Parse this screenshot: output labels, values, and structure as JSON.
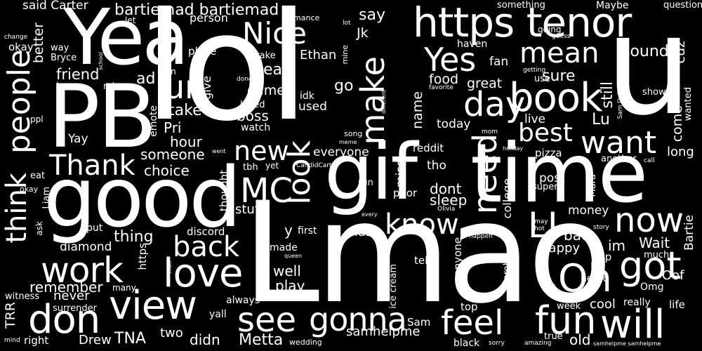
{
  "background_color": "#000000",
  "text_color": "#ffffff",
  "words": {
    "lol": "lol",
    "lmao": "Lmao",
    "time": "time",
    "gif": "gif",
    "good": "good",
    "pb": "PB",
    "yea": "Yea",
    "u": "u",
    "https_tenor": "https tenor",
    "book": "book",
    "view": "view",
    "love": "love",
    "work": "work",
    "don": "don",
    "oh": "Oh",
    "got": "got",
    "will": "will",
    "fun": "fun",
    "feel": "feel",
    "gonna": "gonna",
    "see": "see",
    "now": "now",
    "li": "LI",
    "know": "know",
    "need": "need",
    "look": "look",
    "mc": "MC",
    "want": "want",
    "best": "best",
    "day": "day",
    "mean": "mean",
    "yes": "Yes",
    "nice": "Nice",
    "make": "make",
    "people": "people",
    "think": "think",
    "thank": "Thank",
    "ur": "ur",
    "new": "new",
    "back": "back",
    "bartiemad": "bartiemad bartiemad",
    "said_carter": "said Carter",
    "go": "go",
    "say": "say",
    "jk": "Jk",
    "something": "something",
    "maybe": "Maybe",
    "question": "question",
    "person": "person",
    "let": "let",
    "romance": "romance",
    "lot": "lot",
    "change": "change",
    "better": "better",
    "way": "way",
    "bryce": "Bryce",
    "okay": "okay",
    "school": "school",
    "place": "place",
    "drake": "drake",
    "ethan": "Ethan",
    "mine": "mine",
    "haven": "haven",
    "going": "going",
    "guess": "guess",
    "fan": "fan",
    "cuz": "cuz",
    "sound": "sound",
    "friend": "friend",
    "ad": "ad",
    "team": "team",
    "min": "min",
    "win": "win",
    "give": "give",
    "year": "year",
    "done": "done",
    "food": "food",
    "getting": "getting",
    "use": "use",
    "favorite": "favorite",
    "great": "great",
    "sure": "sure",
    "still": "still",
    "stallon": "Stallon",
    "idk": "idk",
    "game": "game",
    "used": "used",
    "loved": "loved",
    "boss": "boss",
    "watch": "watch",
    "different": "different",
    "name": "name",
    "show": "show",
    "wanted": "wanted",
    "sam_dalton": "Sam Dalton",
    "come": "come",
    "take": "take",
    "emote": "emote",
    "hour": "hour",
    "pri": "Pri",
    "ppl": "ppl",
    "yay": "Yay",
    "lu": "Lu",
    "live": "live",
    "today": "today",
    "mom": "mom",
    "song": "song",
    "meme": "meme",
    "went": "went",
    "holiday": "holiday",
    "everyone": "everyone",
    "reddit": "reddit",
    "miss": "miss",
    "someone": "someone",
    "choice": "choice",
    "long": "long",
    "pizza": "pizza",
    "another": "another",
    "call": "call",
    "eat": "eat",
    "tbh": "tbh",
    "yet": "yet",
    "candidcarter": "CandidCarter",
    "tho": "tho",
    "post": "post",
    "super": "super",
    "mara": "Mara",
    "liam": "Liam",
    "okay2": "okay",
    "run": "run",
    "sleep": "sleep",
    "dont": "dont",
    "poor": "poor",
    "college": "college",
    "olivia": "Olivia",
    "money": "money",
    "stuff": "stuff",
    "thought": "thought",
    "ask": "ask",
    "put": "put",
    "first": "first",
    "may": "may",
    "hot": "hot",
    "story": "story",
    "bad": "bad",
    "thing": "thing",
    "discord": "discord",
    "y": "y",
    "last": "last",
    "every": "every",
    "happen": "happen",
    "im": "im",
    "wait": "Wait",
    "bartie": "Bartie",
    "diamond": "diamond",
    "https": "https",
    "made": "made",
    "queen": "queen",
    "anyone": "anyone",
    "happy": "Happy",
    "app": "app",
    "much": "much",
    "remember": "remember",
    "many": "many",
    "man": "man",
    "well": "well",
    "play": "play",
    "tell": "tell",
    "ice_cream": "ice cream",
    "prob": "prob",
    "heard": "heard",
    "omg": "Omg",
    "oof": "Oof",
    "plz": "plz",
    "witness": "witness",
    "never": "never",
    "trr": "TRR",
    "surrender": "surrender",
    "always": "always",
    "cool": "cool",
    "really": "really",
    "life": "life",
    "top": "top",
    "yall": "yall",
    "week": "week",
    "two": "two",
    "sam": "Sam",
    "samhelpme": "samhelpme",
    "samhelpme2": "samhelpme samhelpme",
    "mind": "mind",
    "right": "right",
    "drew": "Drew",
    "tna": "TNA",
    "didn": "didn",
    "metta": "Metta",
    "wedding": "wedding",
    "black": "black",
    "sorry": "sorry",
    "amazing": "amazing",
    "true": "true",
    "old": "old"
  }
}
